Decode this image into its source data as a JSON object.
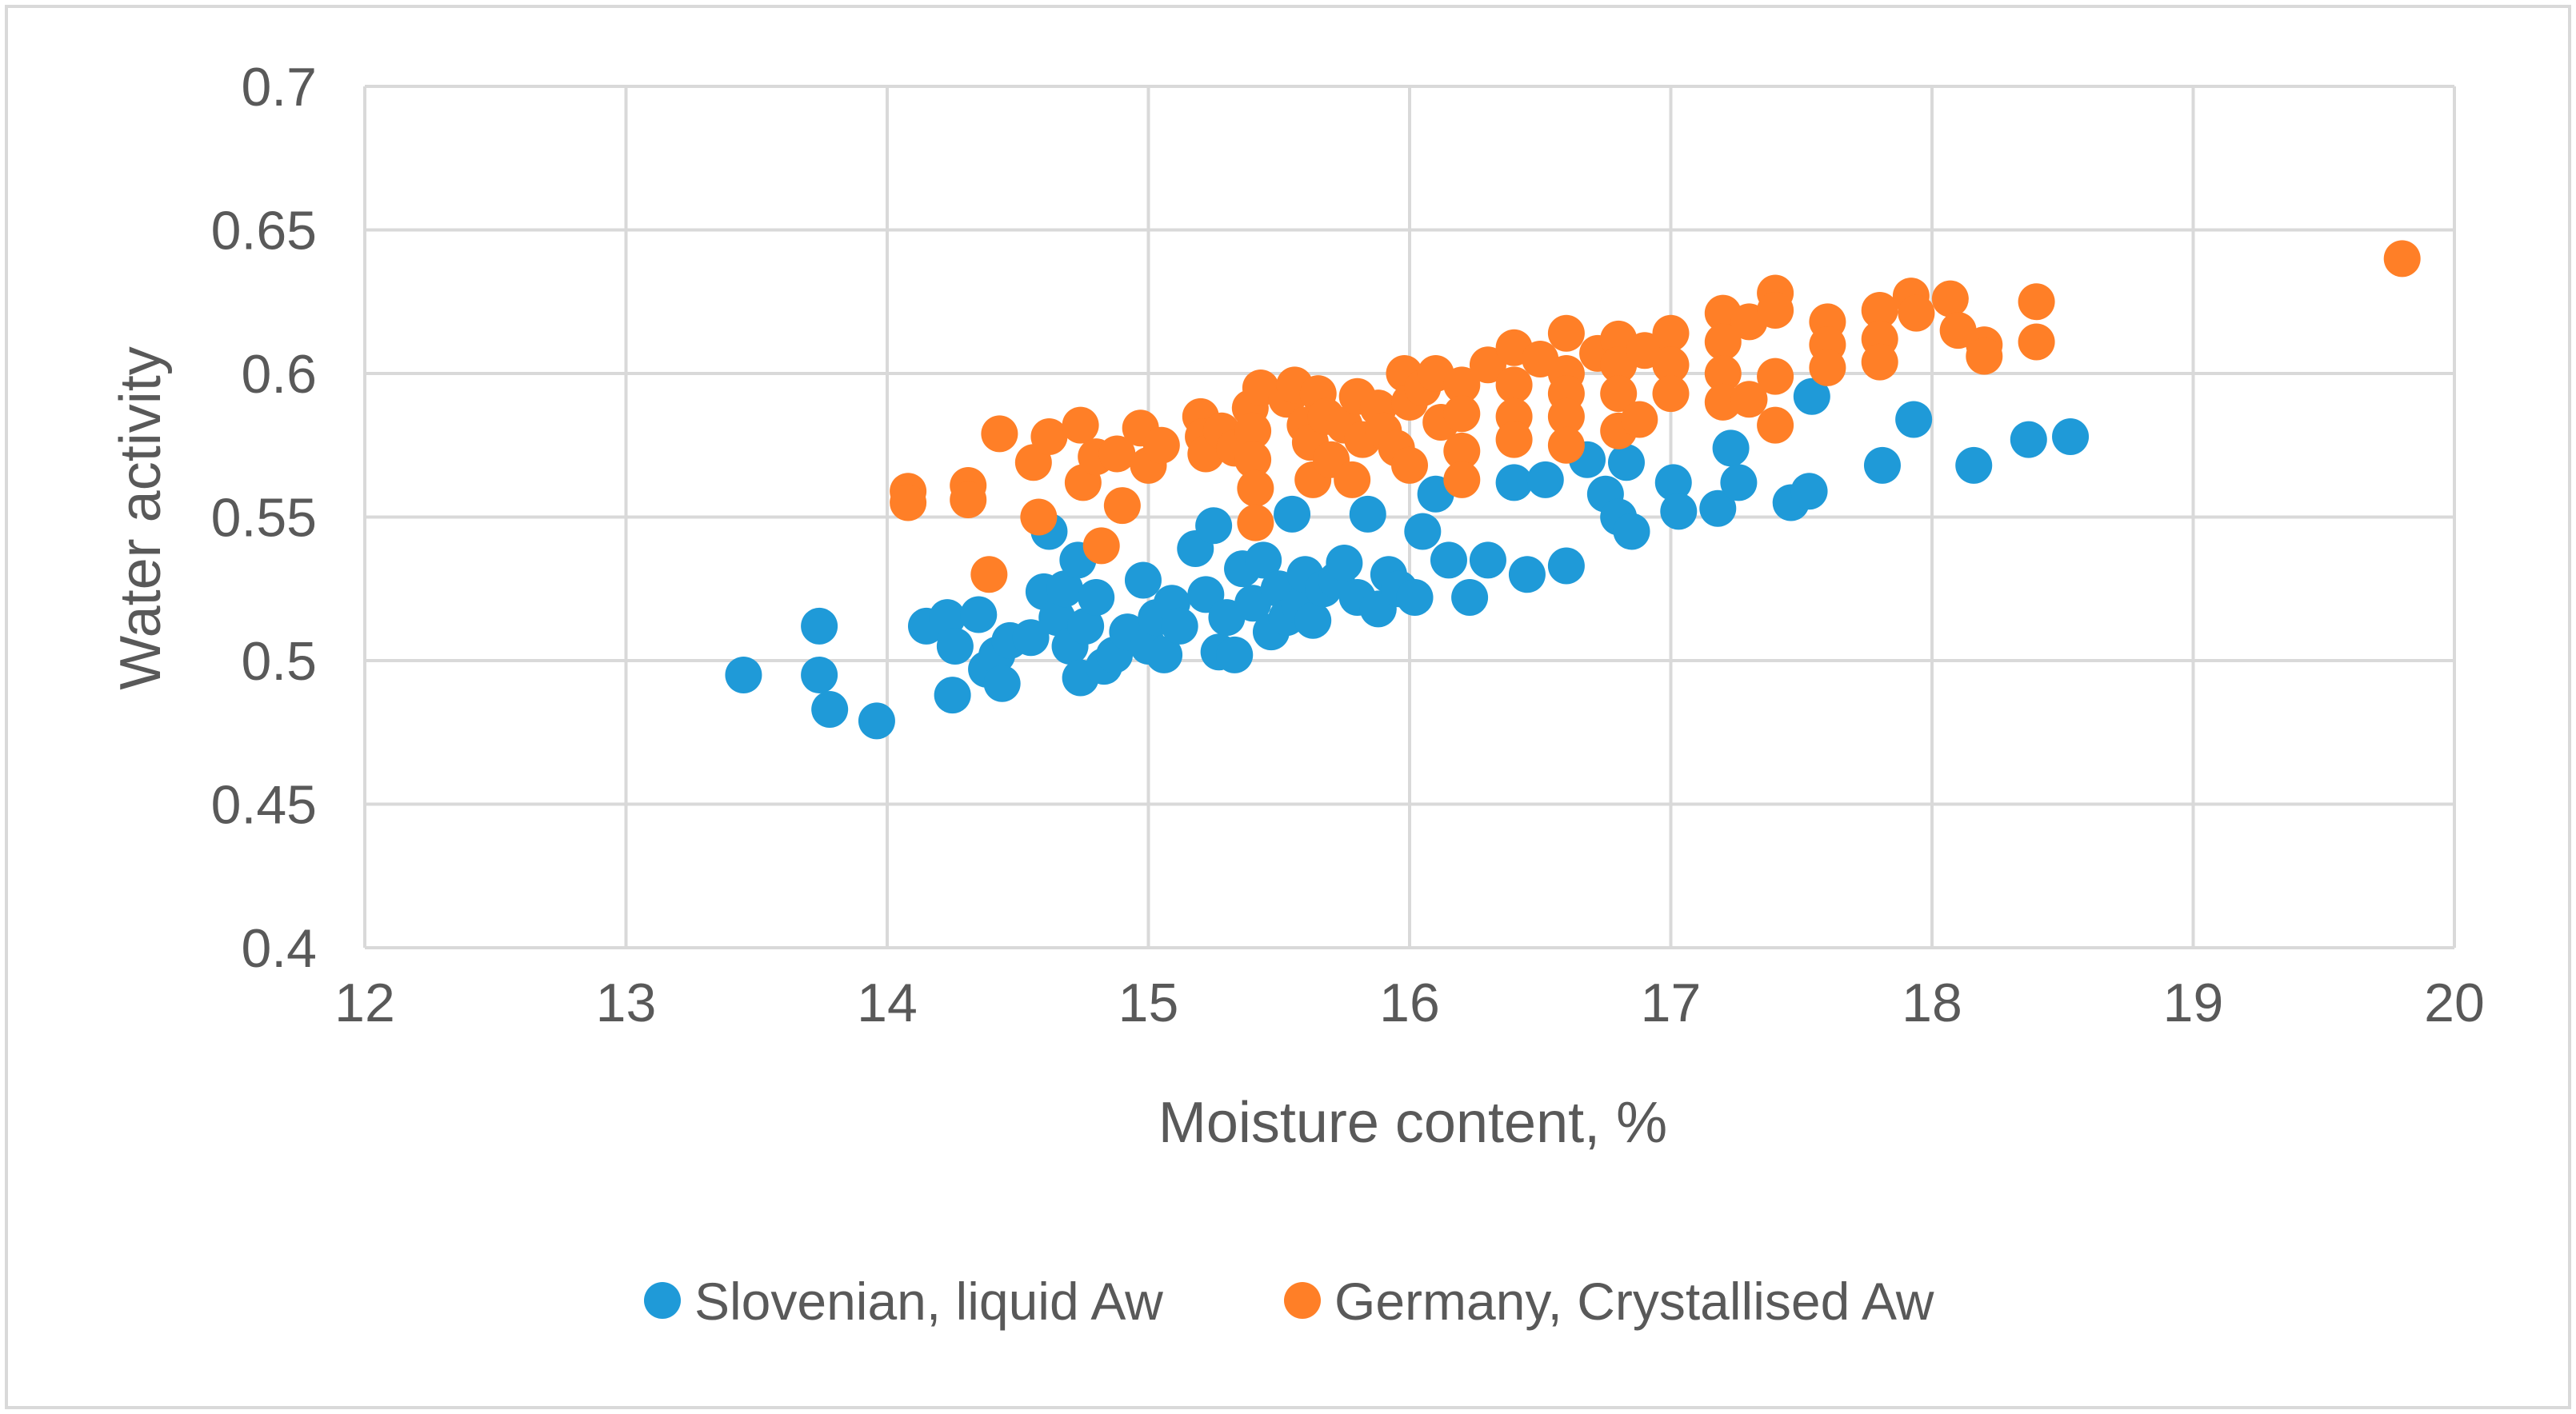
{
  "chart_data": {
    "type": "scatter",
    "title": "",
    "xlabel": "Moisture content, %",
    "ylabel": "Water activity",
    "xlim": [
      12,
      20
    ],
    "ylim": [
      0.4,
      0.7
    ],
    "xticks": [
      "12",
      "13",
      "14",
      "15",
      "16",
      "17",
      "18",
      "19",
      "20"
    ],
    "yticks": [
      "0.4",
      "0.45",
      "0.5",
      "0.55",
      "0.6",
      "0.65",
      "0.7"
    ],
    "grid": true,
    "legend_position": "bottom",
    "series": [
      {
        "name": "Slovenian, liquid Aw",
        "color": "#1F9AD8",
        "points": [
          [
            13.45,
            0.495
          ],
          [
            13.74,
            0.512
          ],
          [
            13.74,
            0.495
          ],
          [
            13.78,
            0.483
          ],
          [
            13.96,
            0.479
          ],
          [
            14.15,
            0.512
          ],
          [
            14.23,
            0.515
          ],
          [
            14.25,
            0.488
          ],
          [
            14.26,
            0.505
          ],
          [
            14.35,
            0.516
          ],
          [
            14.38,
            0.497
          ],
          [
            14.42,
            0.502
          ],
          [
            14.44,
            0.492
          ],
          [
            14.47,
            0.507
          ],
          [
            14.55,
            0.508
          ],
          [
            14.6,
            0.524
          ],
          [
            14.62,
            0.545
          ],
          [
            14.65,
            0.515
          ],
          [
            14.68,
            0.525
          ],
          [
            14.7,
            0.505
          ],
          [
            14.73,
            0.535
          ],
          [
            14.74,
            0.494
          ],
          [
            14.76,
            0.512
          ],
          [
            14.8,
            0.522
          ],
          [
            14.83,
            0.498
          ],
          [
            14.87,
            0.502
          ],
          [
            14.92,
            0.51
          ],
          [
            14.98,
            0.528
          ],
          [
            15.0,
            0.505
          ],
          [
            15.03,
            0.515
          ],
          [
            15.06,
            0.502
          ],
          [
            15.09,
            0.52
          ],
          [
            15.12,
            0.512
          ],
          [
            15.18,
            0.539
          ],
          [
            15.22,
            0.523
          ],
          [
            15.25,
            0.547
          ],
          [
            15.27,
            0.503
          ],
          [
            15.3,
            0.515
          ],
          [
            15.33,
            0.502
          ],
          [
            15.36,
            0.532
          ],
          [
            15.4,
            0.52
          ],
          [
            15.44,
            0.535
          ],
          [
            15.47,
            0.51
          ],
          [
            15.5,
            0.525
          ],
          [
            15.53,
            0.515
          ],
          [
            15.55,
            0.551
          ],
          [
            15.58,
            0.519
          ],
          [
            15.6,
            0.53
          ],
          [
            15.63,
            0.514
          ],
          [
            15.67,
            0.525
          ],
          [
            15.72,
            0.528
          ],
          [
            15.75,
            0.534
          ],
          [
            15.8,
            0.522
          ],
          [
            15.84,
            0.551
          ],
          [
            15.88,
            0.518
          ],
          [
            15.92,
            0.53
          ],
          [
            15.96,
            0.525
          ],
          [
            16.02,
            0.522
          ],
          [
            16.05,
            0.545
          ],
          [
            16.1,
            0.558
          ],
          [
            16.15,
            0.535
          ],
          [
            16.23,
            0.522
          ],
          [
            16.3,
            0.535
          ],
          [
            16.4,
            0.562
          ],
          [
            16.45,
            0.53
          ],
          [
            16.52,
            0.563
          ],
          [
            16.6,
            0.533
          ],
          [
            16.68,
            0.57
          ],
          [
            16.75,
            0.558
          ],
          [
            16.8,
            0.55
          ],
          [
            16.85,
            0.545
          ],
          [
            16.83,
            0.569
          ],
          [
            17.01,
            0.562
          ],
          [
            17.03,
            0.552
          ],
          [
            17.18,
            0.553
          ],
          [
            17.23,
            0.574
          ],
          [
            17.26,
            0.562
          ],
          [
            17.46,
            0.555
          ],
          [
            17.53,
            0.559
          ],
          [
            17.54,
            0.592
          ],
          [
            17.81,
            0.568
          ],
          [
            17.93,
            0.584
          ],
          [
            18.16,
            0.568
          ],
          [
            18.37,
            0.577
          ],
          [
            18.53,
            0.578
          ]
        ]
      },
      {
        "name": "Germany, Crystallised Aw",
        "color": "#FF7F27",
        "points": [
          [
            14.08,
            0.559
          ],
          [
            14.08,
            0.555
          ],
          [
            14.31,
            0.561
          ],
          [
            14.31,
            0.556
          ],
          [
            14.39,
            0.53
          ],
          [
            14.43,
            0.579
          ],
          [
            14.56,
            0.569
          ],
          [
            14.58,
            0.55
          ],
          [
            14.62,
            0.578
          ],
          [
            14.74,
            0.582
          ],
          [
            14.75,
            0.562
          ],
          [
            14.8,
            0.571
          ],
          [
            14.82,
            0.54
          ],
          [
            14.88,
            0.572
          ],
          [
            14.9,
            0.554
          ],
          [
            14.97,
            0.581
          ],
          [
            15.0,
            0.568
          ],
          [
            15.05,
            0.575
          ],
          [
            15.2,
            0.585
          ],
          [
            15.21,
            0.578
          ],
          [
            15.22,
            0.572
          ],
          [
            15.28,
            0.58
          ],
          [
            15.33,
            0.574
          ],
          [
            15.39,
            0.588
          ],
          [
            15.4,
            0.58
          ],
          [
            15.4,
            0.57
          ],
          [
            15.41,
            0.56
          ],
          [
            15.41,
            0.548
          ],
          [
            15.43,
            0.595
          ],
          [
            15.53,
            0.591
          ],
          [
            15.56,
            0.596
          ],
          [
            15.6,
            0.582
          ],
          [
            15.62,
            0.576
          ],
          [
            15.63,
            0.563
          ],
          [
            15.65,
            0.593
          ],
          [
            15.68,
            0.585
          ],
          [
            15.7,
            0.57
          ],
          [
            15.75,
            0.582
          ],
          [
            15.78,
            0.563
          ],
          [
            15.8,
            0.592
          ],
          [
            15.82,
            0.577
          ],
          [
            15.88,
            0.588
          ],
          [
            15.9,
            0.58
          ],
          [
            15.95,
            0.574
          ],
          [
            15.98,
            0.6
          ],
          [
            16.0,
            0.59
          ],
          [
            16.0,
            0.568
          ],
          [
            16.05,
            0.595
          ],
          [
            16.1,
            0.6
          ],
          [
            16.12,
            0.583
          ],
          [
            16.2,
            0.596
          ],
          [
            16.2,
            0.586
          ],
          [
            16.2,
            0.573
          ],
          [
            16.2,
            0.563
          ],
          [
            16.3,
            0.603
          ],
          [
            16.4,
            0.609
          ],
          [
            16.4,
            0.596
          ],
          [
            16.4,
            0.585
          ],
          [
            16.4,
            0.577
          ],
          [
            16.5,
            0.605
          ],
          [
            16.6,
            0.614
          ],
          [
            16.6,
            0.6
          ],
          [
            16.6,
            0.593
          ],
          [
            16.6,
            0.585
          ],
          [
            16.6,
            0.575
          ],
          [
            16.72,
            0.607
          ],
          [
            16.8,
            0.612
          ],
          [
            16.8,
            0.603
          ],
          [
            16.8,
            0.593
          ],
          [
            16.8,
            0.58
          ],
          [
            16.9,
            0.608
          ],
          [
            16.88,
            0.584
          ],
          [
            17.0,
            0.614
          ],
          [
            17.0,
            0.603
          ],
          [
            17.0,
            0.593
          ],
          [
            17.2,
            0.621
          ],
          [
            17.2,
            0.611
          ],
          [
            17.2,
            0.6
          ],
          [
            17.2,
            0.59
          ],
          [
            17.3,
            0.618
          ],
          [
            17.3,
            0.591
          ],
          [
            17.4,
            0.628
          ],
          [
            17.4,
            0.622
          ],
          [
            17.4,
            0.599
          ],
          [
            17.4,
            0.582
          ],
          [
            17.6,
            0.618
          ],
          [
            17.6,
            0.61
          ],
          [
            17.6,
            0.602
          ],
          [
            17.8,
            0.622
          ],
          [
            17.8,
            0.612
          ],
          [
            17.8,
            0.604
          ],
          [
            17.92,
            0.627
          ],
          [
            17.94,
            0.621
          ],
          [
            18.07,
            0.626
          ],
          [
            18.1,
            0.615
          ],
          [
            18.2,
            0.61
          ],
          [
            18.2,
            0.606
          ],
          [
            18.4,
            0.625
          ],
          [
            18.4,
            0.611
          ],
          [
            19.8,
            0.64
          ]
        ]
      }
    ]
  }
}
